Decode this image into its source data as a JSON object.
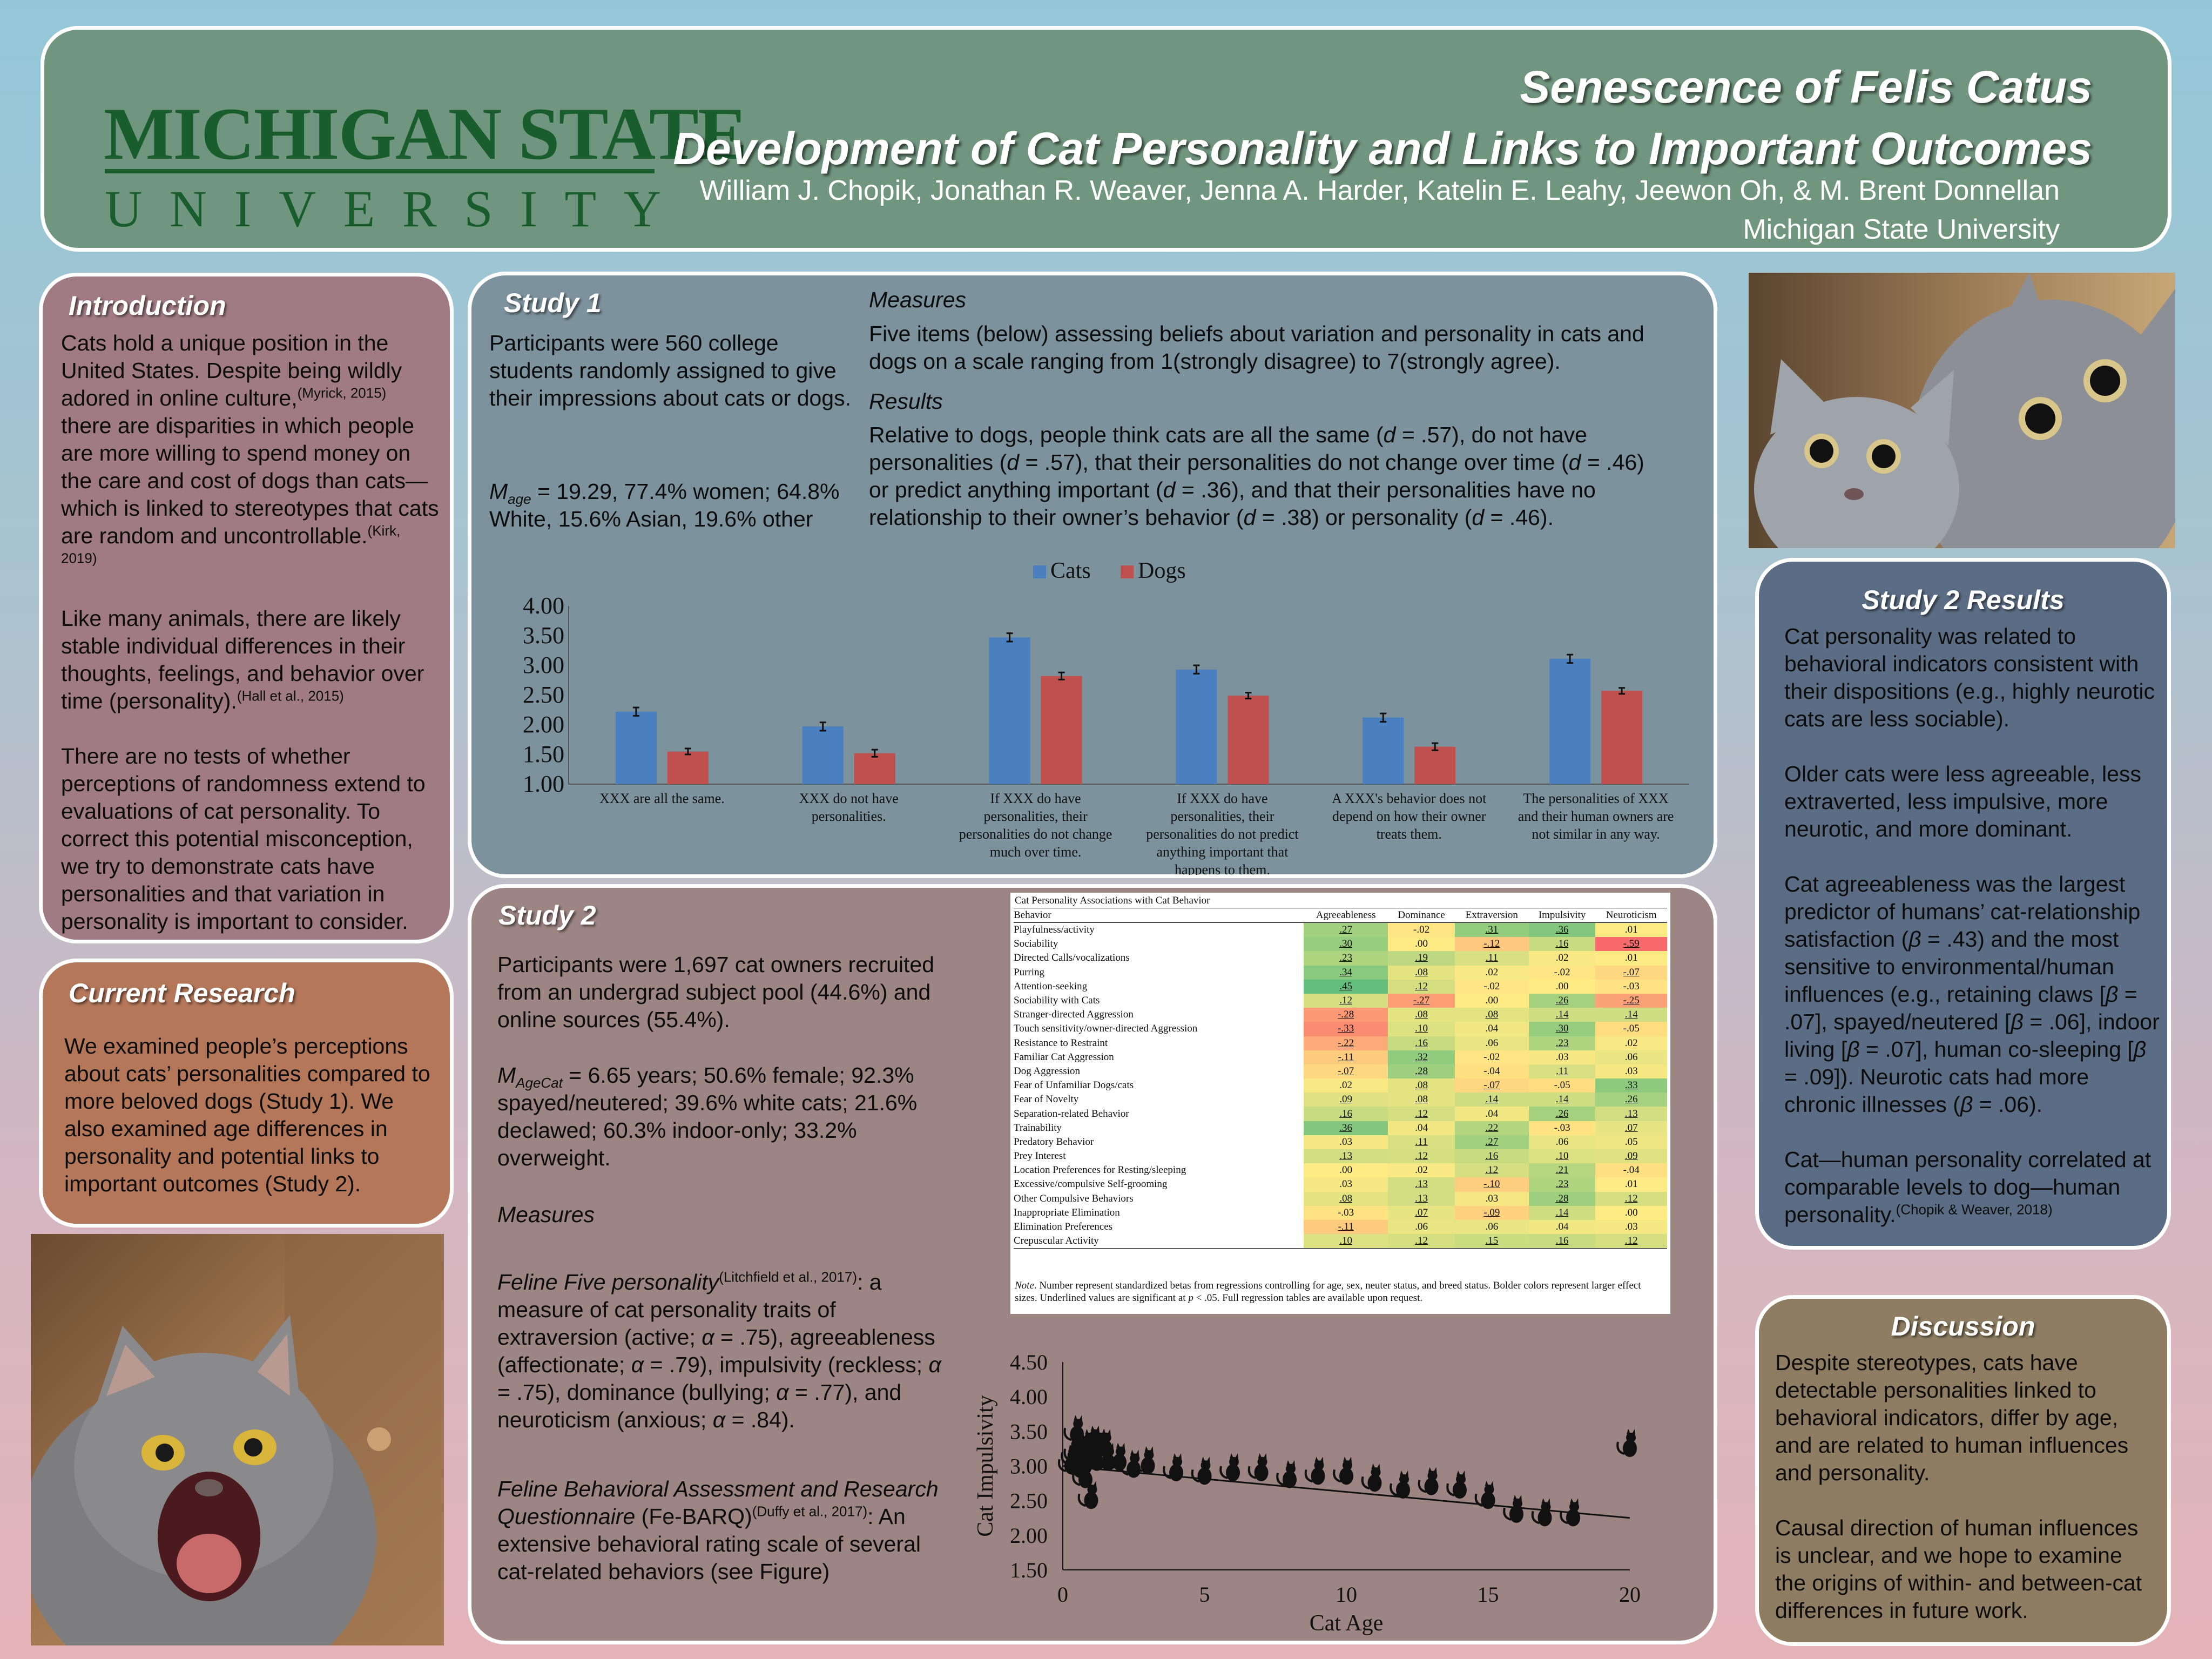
{
  "header": {
    "logo_line1": "MICHIGAN STATE",
    "logo_line2": "UNIVERSITY",
    "title_line1": "Senescence of Felis Catus",
    "title_line2": "Development of Cat Personality and Links to Important Outcomes",
    "authors": "William J. Chopik, Jonathan R. Weaver, Jenna A. Harder, Katelin E. Leahy, Jeewon Oh, & M. Brent Donnellan",
    "affiliation": "Michigan State University"
  },
  "intro": {
    "title": "Introduction",
    "p1_a": "Cats hold a unique position in the United States. Despite being wildly adored in online culture,",
    "p1_cite1": "(Myrick, 2015)",
    "p1_b": " there are disparities in which people are more willing to spend money on the care and cost of dogs than cats—which is linked to stereotypes that cats are random and uncontrollable.",
    "p1_cite2": "(Kirk, 2019)",
    "p2_a": "Like many animals, there are likely stable individual differences in their thoughts, feelings, and behavior over time (personality).",
    "p2_cite": "(Hall et al., 2015)",
    "p3": "There are no tests of whether perceptions of randomness extend to evaluations of cat personality. To correct this potential misconception, we try to demonstrate cats have personalities and that variation in personality is important to consider."
  },
  "current": {
    "title": "Current Research",
    "text": "We examined people’s perceptions about cats’ personalities compared to more beloved dogs (Study 1). We also examined age differences in personality and potential links to important outcomes (Study 2)."
  },
  "study1": {
    "title": "Study 1",
    "participants": "Participants were 560 college students randomly assigned to give their impressions about cats or dogs.",
    "m_label": "M",
    "m_sub": "age",
    "demographics": " = 19.29, 77.4% women; 64.8% White, 15.6% Asian, 19.6% other",
    "measures_head": "Measures",
    "measures_text": "Five items (below) assessing beliefs about variation and personality in cats and dogs on a scale ranging from 1(strongly disagree) to 7(strongly agree).",
    "results_head": "Results",
    "res_1": "Relative to dogs, people think cats are all the same (",
    "res_2": " = .57), do not have personalities (",
    "res_3": " = .57), that their personalities do not change over time (",
    "res_4": " = .46) or predict anything important (",
    "res_5": " = .36), and that their personalities have no relationship to their owner’s behavior (",
    "res_6": " = .38) or personality (",
    "res_7": " = .46).",
    "d": "d"
  },
  "study2": {
    "title": "Study 2",
    "participants": "Participants were 1,697 cat owners recruited from an undergrad subject pool (44.6%) and online sources (55.4%).",
    "m_label": "M",
    "m_sub": "AgeCat",
    "demographics": " = 6.65 years; 50.6% female; 92.3% spayed/neutered; 39.6% white cats; 21.6% declawed; 60.3% indoor-only; 33.2% overweight.",
    "measures_head": "Measures",
    "ff_title": "Feline Five personality",
    "ff_cite": "(Litchfield et al., 2017)",
    "ff_a": ": a measure of cat personality traits of extraversion (active; ",
    "ff_b": " = .75), agreeableness (affectionate; ",
    "ff_c": " = .79), impulsivity (reckless; ",
    "ff_d": " = .75), dominance (bullying; ",
    "ff_e": " = .77), and neuroticism (anxious; ",
    "ff_f": " = .84).",
    "alpha": "α",
    "fb_title": "Feline Behavioral Assessment and Research Questionnaire",
    "fb_abbr": " (Fe-BARQ)",
    "fb_cite": "(Duffy et al., 2017)",
    "fb_text": ": An extensive behavioral rating scale of several cat-related behaviors (see Figure)"
  },
  "table": {
    "title": "Cat Personality Associations with Cat Behavior",
    "columns": [
      "Behavior",
      "Agreeableness",
      "Dominance",
      "Extraversion",
      "Impulsivity",
      "Neuroticism"
    ],
    "rows": [
      [
        "Playfulness/activity",
        ".27",
        "-.02",
        ".31",
        ".36",
        ".01"
      ],
      [
        "Sociability",
        ".30",
        ".00",
        "-.12",
        ".16",
        "-.59"
      ],
      [
        "Directed Calls/vocalizations",
        ".23",
        ".19",
        ".11",
        ".02",
        ".01"
      ],
      [
        "Purring",
        ".34",
        ".08",
        ".02",
        "-.02",
        "-.07"
      ],
      [
        "Attention-seeking",
        ".45",
        ".12",
        "-.02",
        ".00",
        "-.03"
      ],
      [
        "Sociability with Cats",
        ".12",
        "-.27",
        ".00",
        ".26",
        "-.25"
      ],
      [
        "Stranger-directed Aggression",
        "-.28",
        ".08",
        ".08",
        ".14",
        ".14"
      ],
      [
        "Touch sensitivity/owner-directed Aggression",
        "-.33",
        ".10",
        ".04",
        ".30",
        "-.05"
      ],
      [
        "Resistance to Restraint",
        "-.22",
        ".16",
        ".06",
        ".23",
        ".02"
      ],
      [
        "Familiar Cat Aggression",
        "-.11",
        ".32",
        "-.02",
        ".03",
        ".06"
      ],
      [
        "Dog Aggression",
        "-.07",
        ".28",
        "-.04",
        ".11",
        ".03"
      ],
      [
        "Fear of Unfamiliar Dogs/cats",
        ".02",
        ".08",
        "-.07",
        "-.05",
        ".33"
      ],
      [
        "Fear of Novelty",
        ".09",
        ".08",
        ".14",
        ".14",
        ".26"
      ],
      [
        "Separation-related Behavior",
        ".16",
        ".12",
        ".04",
        ".26",
        ".13"
      ],
      [
        "Trainability",
        ".36",
        ".04",
        ".22",
        "-.03",
        ".07"
      ],
      [
        "Predatory Behavior",
        ".03",
        ".11",
        ".27",
        ".06",
        ".05"
      ],
      [
        "Prey Interest",
        ".13",
        ".12",
        ".16",
        ".10",
        ".09"
      ],
      [
        "Location Preferences for Resting/sleeping",
        ".00",
        ".02",
        ".12",
        ".21",
        "-.04"
      ],
      [
        "Excessive/compulsive Self-grooming",
        ".03",
        ".13",
        "-.10",
        ".23",
        ".01"
      ],
      [
        "Other Compulsive Behaviors",
        ".08",
        ".13",
        ".03",
        ".28",
        ".12"
      ],
      [
        "Inappropriate Elimination",
        "-.03",
        ".07",
        "-.09",
        ".14",
        ".00"
      ],
      [
        "Elimination Preferences",
        "-.11",
        ".06",
        ".06",
        ".04",
        ".03"
      ],
      [
        "Crepuscular Activity",
        ".10",
        ".12",
        ".15",
        ".16",
        ".12"
      ]
    ],
    "note_label": "Note",
    "note": ". Number represent standardized betas from regressions controlling for age, sex, neuter status, and breed status. Bolder colors represent larger effect sizes. Underlined values are significant at ",
    "note_p": "p",
    "note_end": " < .05. Full regression tables are available upon request."
  },
  "s2results": {
    "title": "Study 2 Results",
    "p1": "Cat personality was related to behavioral indicators consistent with their dispositions (e.g., highly neurotic cats are less sociable).",
    "p2": "Older cats were less agreeable, less extraverted, less impulsive, more neurotic, and more dominant.",
    "p3_a": "Cat agreeableness was the largest predictor of humans’ cat-relationship satisfaction (",
    "p3_b": " = .43) and the most sensitive to environmental/human influences (e.g., retaining claws [",
    "p3_c": " = .07], spayed/neutered [",
    "p3_d": " = .06], indoor living [",
    "p3_e": " = .07], human co-sleeping [",
    "p3_f": " = .09]). Neurotic cats had more chronic illnesses (",
    "p3_g": " = .06).",
    "beta": "β",
    "p4": "Cat—human personality correlated at comparable levels to dog—human personality.",
    "p4_cite": "(Chopik & Weaver, 2018)"
  },
  "discussion": {
    "title": "Discussion",
    "p1": "Despite stereotypes, cats have detectable personalities linked to behavioral indicators, differ by age, and are related to human influences and personality.",
    "p2": "Causal direction of human influences is unclear, and we hope to examine the origins of within- and between-cat differences in future work."
  },
  "chart_data": [
    {
      "type": "bar",
      "categories": [
        "XXX are all the same.",
        "XXX do not have personalities.",
        "If XXX do have personalities, their personalities do not change much over time.",
        "If XXX do have personalities, their personalities do not predict anything important that happens to them.",
        "A XXX's behavior does not depend on how their owner treats them.",
        "The personalities of XXX and their human owners are not similar in any way."
      ],
      "category_lines": [
        [
          "XXX are all the same."
        ],
        [
          "XXX do not have",
          "personalities."
        ],
        [
          "If XXX do have",
          "personalities, their",
          "personalities do not change",
          "much over time."
        ],
        [
          "If XXX do have",
          "personalities, their",
          "personalities do not predict",
          "anything important that",
          "happens to them."
        ],
        [
          "A XXX's behavior does not",
          "depend on how their owner",
          "treats them."
        ],
        [
          "The personalities of XXX",
          "and their human owners are",
          "not similar in any way."
        ]
      ],
      "series": [
        {
          "name": "Cats",
          "color": "#4a7fc0",
          "values": [
            2.22,
            1.97,
            3.47,
            2.93,
            2.12,
            3.11
          ],
          "errors": [
            0.07,
            0.07,
            0.07,
            0.07,
            0.07,
            0.07
          ]
        },
        {
          "name": "Dogs",
          "color": "#c0504d",
          "values": [
            1.55,
            1.52,
            2.82,
            2.49,
            1.63,
            2.57
          ],
          "errors": [
            0.05,
            0.06,
            0.06,
            0.05,
            0.06,
            0.05
          ]
        }
      ],
      "ylim": [
        1.0,
        4.0
      ],
      "yticks": [
        "1.00",
        "1.50",
        "2.00",
        "2.50",
        "3.00",
        "3.50",
        "4.00"
      ],
      "legend": "top-center",
      "grid": false
    },
    {
      "type": "scatter",
      "xlabel": "Cat Age",
      "ylabel": "Cat Impulsivity",
      "xlim": [
        0,
        20
      ],
      "ylim": [
        1.5,
        4.5
      ],
      "xticks": [
        "0",
        "5",
        "10",
        "15",
        "20"
      ],
      "yticks": [
        "1.50",
        "2.00",
        "2.50",
        "3.00",
        "3.50",
        "4.00",
        "4.50"
      ],
      "points": [
        [
          0.3,
          3.05
        ],
        [
          0.4,
          3.15
        ],
        [
          0.5,
          3.2
        ],
        [
          0.5,
          3.5
        ],
        [
          0.6,
          3.0
        ],
        [
          0.7,
          3.25
        ],
        [
          0.8,
          3.1
        ],
        [
          0.8,
          2.85
        ],
        [
          0.9,
          3.3
        ],
        [
          1.0,
          3.15
        ],
        [
          1.0,
          2.55
        ],
        [
          1.1,
          3.35
        ],
        [
          1.2,
          3.1
        ],
        [
          1.3,
          3.3
        ],
        [
          1.5,
          3.3
        ],
        [
          1.6,
          3.1
        ],
        [
          2.0,
          3.1
        ],
        [
          2.5,
          3.0
        ],
        [
          3.0,
          3.05
        ],
        [
          4.0,
          2.95
        ],
        [
          5.0,
          2.9
        ],
        [
          6.0,
          2.95
        ],
        [
          7.0,
          2.95
        ],
        [
          8.0,
          2.85
        ],
        [
          9.0,
          2.9
        ],
        [
          10.0,
          2.9
        ],
        [
          11.0,
          2.8
        ],
        [
          12.0,
          2.7
        ],
        [
          13.0,
          2.75
        ],
        [
          14.0,
          2.7
        ],
        [
          15.0,
          2.55
        ],
        [
          16.0,
          2.35
        ],
        [
          17.0,
          2.3
        ],
        [
          18.0,
          2.3
        ],
        [
          20.0,
          3.3
        ]
      ],
      "trend": [
        [
          0,
          3.0
        ],
        [
          20,
          2.25
        ]
      ],
      "grid": false
    }
  ]
}
